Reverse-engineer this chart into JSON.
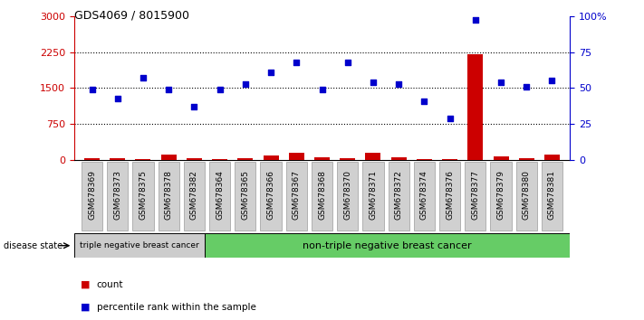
{
  "title": "GDS4069 / 8015900",
  "samples": [
    "GSM678369",
    "GSM678373",
    "GSM678375",
    "GSM678378",
    "GSM678382",
    "GSM678364",
    "GSM678365",
    "GSM678366",
    "GSM678367",
    "GSM678368",
    "GSM678370",
    "GSM678371",
    "GSM678372",
    "GSM678374",
    "GSM678376",
    "GSM678377",
    "GSM678379",
    "GSM678380",
    "GSM678381"
  ],
  "count": [
    35,
    30,
    25,
    120,
    35,
    15,
    30,
    100,
    150,
    50,
    30,
    160,
    60,
    10,
    20,
    2200,
    80,
    40,
    110
  ],
  "percentile": [
    49,
    43,
    57,
    49,
    37,
    49,
    53,
    61,
    68,
    49,
    68,
    54,
    53,
    41,
    29,
    97,
    54,
    51,
    55
  ],
  "group1_count": 5,
  "group1_label": "triple negative breast cancer",
  "group2_label": "non-triple negative breast cancer",
  "ylim_left": [
    0,
    3000
  ],
  "yticks_left": [
    0,
    750,
    1500,
    2250,
    3000
  ],
  "ylim_right": [
    0,
    100
  ],
  "yticks_right": [
    0,
    25,
    50,
    75,
    100
  ],
  "left_color": "#cc0000",
  "right_color": "#0000cc",
  "group1_bg": "#cccccc",
  "group2_bg": "#66cc66",
  "sample_box_bg": "#d0d0d0",
  "dotted_line_color": "#000000",
  "background_color": "#ffffff"
}
